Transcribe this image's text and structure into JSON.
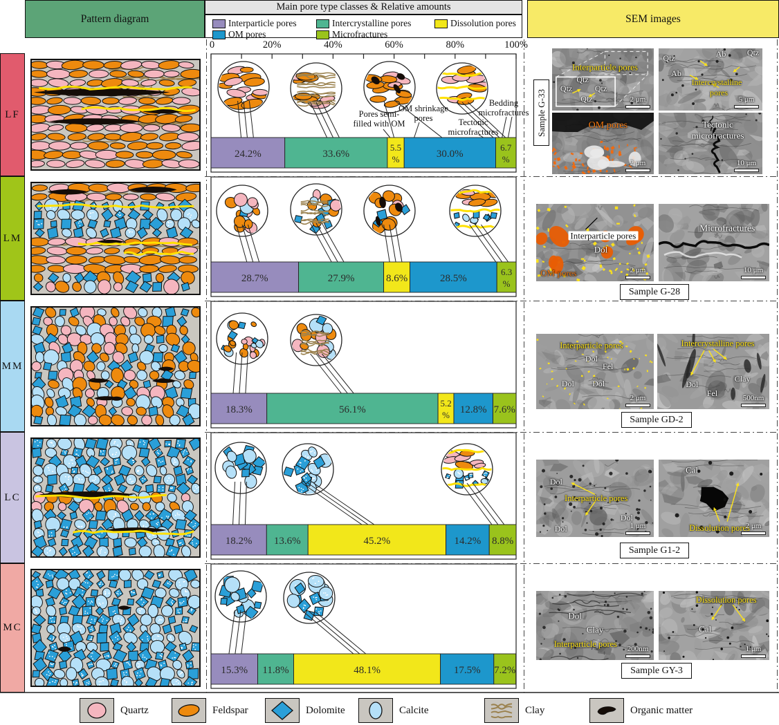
{
  "headers": {
    "pattern": "Pattern diagram",
    "pores": "Main pore type classes & Relative amounts",
    "sem": "SEM images"
  },
  "pore_types": [
    {
      "label": "Interparticle pores",
      "color": "#978cbd"
    },
    {
      "label": "Intercrystalline pores",
      "color": "#4fb591"
    },
    {
      "label": "Dissolution pores",
      "color": "#f2e71a"
    },
    {
      "label": "OM pores",
      "color": "#1d97cc"
    },
    {
      "label": "Microfractures",
      "color": "#9ac31c"
    }
  ],
  "axis": {
    "tick_labels": [
      "0",
      "20%",
      "40%",
      "60%",
      "80%",
      "100%"
    ]
  },
  "rows": [
    {
      "id": "LF",
      "label": "LF",
      "strip_color": "#e15b6d",
      "values": [
        24.2,
        33.6,
        5.5,
        30.0,
        6.7
      ],
      "annotations": [
        "Pores semi-\nfilled with OM",
        "OM shrinkage\npores",
        "Tectonic\nmicrofractures",
        "Bedding\nmicrofractures"
      ],
      "sem": {
        "sample": "Sample G-33",
        "images": [
          {
            "scale": "2 μm",
            "labels": [
              {
                "text": "Interparticle pores",
                "color": "#ffe418",
                "x": 52,
                "y": 30,
                "fs": 13
              },
              {
                "text": "Qtz",
                "color": "#ffffff",
                "x": 30,
                "y": 50,
                "fs": 12
              },
              {
                "text": "Qtz",
                "color": "#ffffff",
                "x": 14,
                "y": 64,
                "fs": 12
              },
              {
                "text": "Qtz",
                "color": "#ffffff",
                "x": 48,
                "y": 64,
                "fs": 12
              },
              {
                "text": "Qtz",
                "color": "#ffffff",
                "x": 34,
                "y": 81,
                "fs": 12
              }
            ]
          },
          {
            "scale": "5 μm",
            "labels": [
              {
                "text": "Qtz",
                "color": "#ffffff",
                "x": 10,
                "y": 16,
                "fs": 12
              },
              {
                "text": "Ab",
                "color": "#ffffff",
                "x": 60,
                "y": 9,
                "fs": 12
              },
              {
                "text": "Qtz",
                "color": "#ffffff",
                "x": 91,
                "y": 7,
                "fs": 12
              },
              {
                "text": "Ab",
                "color": "#ffffff",
                "x": 17,
                "y": 40,
                "fs": 12
              },
              {
                "text": "Intercrystalline",
                "color": "#ffe418",
                "x": 56,
                "y": 54,
                "fs": 12
              },
              {
                "text": "pores",
                "color": "#ffe418",
                "x": 58,
                "y": 71,
                "fs": 12
              }
            ]
          },
          {
            "scale": "2 μm",
            "labels": [
              {
                "text": "OM pores",
                "color": "#f3780f",
                "x": 55,
                "y": 21,
                "fs": 14
              }
            ]
          },
          {
            "scale": "10 μm",
            "labels": [
              {
                "text": "Tectonic",
                "color": "#ffffff",
                "x": 57,
                "y": 19,
                "fs": 13
              },
              {
                "text": "microfractures",
                "color": "#ffffff",
                "x": 57,
                "y": 37,
                "fs": 13
              }
            ]
          }
        ]
      }
    },
    {
      "id": "LM",
      "label": "LM",
      "strip_color": "#a0c519",
      "values": [
        28.7,
        27.9,
        8.6,
        28.5,
        6.3
      ],
      "annotations": [],
      "sem": {
        "sample": "Sample G-28",
        "images": [
          {
            "scale": "2 μm",
            "labels": [
              {
                "text": "Interparticle pores",
                "color": "#111111",
                "chip": true,
                "x": 57,
                "y": 41,
                "fs": 13
              },
              {
                "text": "Dol",
                "color": "#ffffff",
                "x": 55,
                "y": 59,
                "fs": 13
              },
              {
                "text": "OM pores",
                "color": "#f3780f",
                "x": 19,
                "y": 89,
                "fs": 13
              }
            ]
          },
          {
            "scale": "10 μm",
            "labels": [
              {
                "text": "Microfractures",
                "color": "#ffffff",
                "x": 62,
                "y": 31,
                "fs": 13.5
              }
            ]
          }
        ]
      }
    },
    {
      "id": "MM",
      "label": "MM",
      "strip_color": "#a9d9f2",
      "values": [
        18.3,
        56.1,
        5.2,
        12.8,
        7.6
      ],
      "annotations": [],
      "sem": {
        "sample": "Sample GD-2",
        "images": [
          {
            "scale": "2 μm",
            "labels": [
              {
                "text": "Interparticle pores",
                "color": "#ffe418",
                "x": 47,
                "y": 16,
                "fs": 12.5
              },
              {
                "text": "Dol",
                "color": "#ffffff",
                "x": 47,
                "y": 33,
                "fs": 12
              },
              {
                "text": "Fel",
                "color": "#ffffff",
                "x": 61,
                "y": 43,
                "fs": 12
              },
              {
                "text": "Dol",
                "color": "#ffffff",
                "x": 27,
                "y": 66,
                "fs": 12
              },
              {
                "text": "Dol",
                "color": "#ffffff",
                "x": 53,
                "y": 66,
                "fs": 12
              }
            ]
          },
          {
            "scale": "500nm",
            "labels": [
              {
                "text": "Intercrystalline pores",
                "color": "#ffe418",
                "x": 54,
                "y": 13,
                "fs": 12.5
              },
              {
                "text": "Dol",
                "color": "#ffffff",
                "x": 31,
                "y": 67,
                "fs": 12
              },
              {
                "text": "Fel",
                "color": "#ffffff",
                "x": 49,
                "y": 79,
                "fs": 12
              },
              {
                "text": "Clay",
                "color": "#ffffff",
                "x": 76,
                "y": 60,
                "fs": 12
              }
            ]
          }
        ]
      }
    },
    {
      "id": "LC",
      "label": "LC",
      "strip_color": "#c9c4e1",
      "values": [
        18.2,
        13.6,
        45.2,
        14.2,
        8.8
      ],
      "annotations": [],
      "sem": {
        "sample": "Sample G1-2",
        "images": [
          {
            "scale": "1 μm",
            "labels": [
              {
                "text": "Dol",
                "color": "#ffffff",
                "x": 17,
                "y": 29,
                "fs": 12
              },
              {
                "text": "Interparticle pores",
                "color": "#ffe418",
                "x": 51,
                "y": 50,
                "fs": 12.5
              },
              {
                "text": "Dol",
                "color": "#ffffff",
                "x": 77,
                "y": 75,
                "fs": 12
              },
              {
                "text": "Dol",
                "color": "#ffffff",
                "x": 21,
                "y": 89,
                "fs": 12
              }
            ]
          },
          {
            "scale": "2 μm",
            "labels": [
              {
                "text": "Cal",
                "color": "#ffffff",
                "x": 30,
                "y": 13,
                "fs": 13
              },
              {
                "text": "Dissolution pores",
                "color": "#ffe418",
                "x": 55,
                "y": 88,
                "fs": 12.5
              }
            ]
          }
        ]
      }
    },
    {
      "id": "MC",
      "label": "MC",
      "strip_color": "#f0a9a4",
      "values": [
        15.3,
        11.8,
        48.1,
        17.5,
        7.2
      ],
      "annotations": [],
      "sem": {
        "sample": "Sample GY-3",
        "images": [
          {
            "scale": "200nm",
            "labels": [
              {
                "text": "Dol",
                "color": "#ffffff",
                "x": 33,
                "y": 36,
                "fs": 13
              },
              {
                "text": "Clay",
                "color": "#ffffff",
                "x": 50,
                "y": 56,
                "fs": 13
              },
              {
                "text": "Interparticle pores",
                "color": "#ffe418",
                "x": 42,
                "y": 77,
                "fs": 12.5
              }
            ]
          },
          {
            "scale": "1 μm",
            "labels": [
              {
                "text": "Dissolution pores",
                "color": "#ffe418",
                "x": 61,
                "y": 13,
                "fs": 12.5
              },
              {
                "text": "Cal",
                "color": "#ffffff",
                "x": 42,
                "y": 55,
                "fs": 13
              }
            ]
          }
        ]
      }
    }
  ],
  "minerals": [
    {
      "label": "Quartz",
      "color": "#f5b6bf"
    },
    {
      "label": "Feldspar",
      "color": "#ee8a0e"
    },
    {
      "label": "Dolomite",
      "color": "#2a9fd8"
    },
    {
      "label": "Calcite",
      "color": "#b5e0f8"
    },
    {
      "label": "Clay",
      "color": "#9b824f"
    },
    {
      "label": "Organic matter",
      "color": "#150d08"
    }
  ],
  "chart_data": {
    "type": "bar",
    "stacked": true,
    "orientation": "horizontal",
    "unit": "%",
    "title": "Main pore type classes & Relative amounts",
    "categories": [
      "LF",
      "LM",
      "MM",
      "LC",
      "MC"
    ],
    "series": [
      {
        "name": "Interparticle pores",
        "color": "#978cbd",
        "values": [
          24.2,
          28.7,
          18.3,
          18.2,
          15.3
        ]
      },
      {
        "name": "Intercrystalline pores",
        "color": "#4fb591",
        "values": [
          33.6,
          27.9,
          56.1,
          13.6,
          11.8
        ]
      },
      {
        "name": "Dissolution pores",
        "color": "#f2e71a",
        "values": [
          5.5,
          8.6,
          5.2,
          45.2,
          48.1
        ]
      },
      {
        "name": "OM pores",
        "color": "#1d97cc",
        "values": [
          30.0,
          28.5,
          12.8,
          14.2,
          17.5
        ]
      },
      {
        "name": "Microfractures",
        "color": "#9ac31c",
        "values": [
          6.7,
          6.3,
          7.6,
          8.8,
          7.2
        ]
      }
    ],
    "x_axis": {
      "range": [
        0,
        100
      ],
      "ticks": [
        0,
        20,
        40,
        60,
        80,
        100
      ]
    }
  }
}
